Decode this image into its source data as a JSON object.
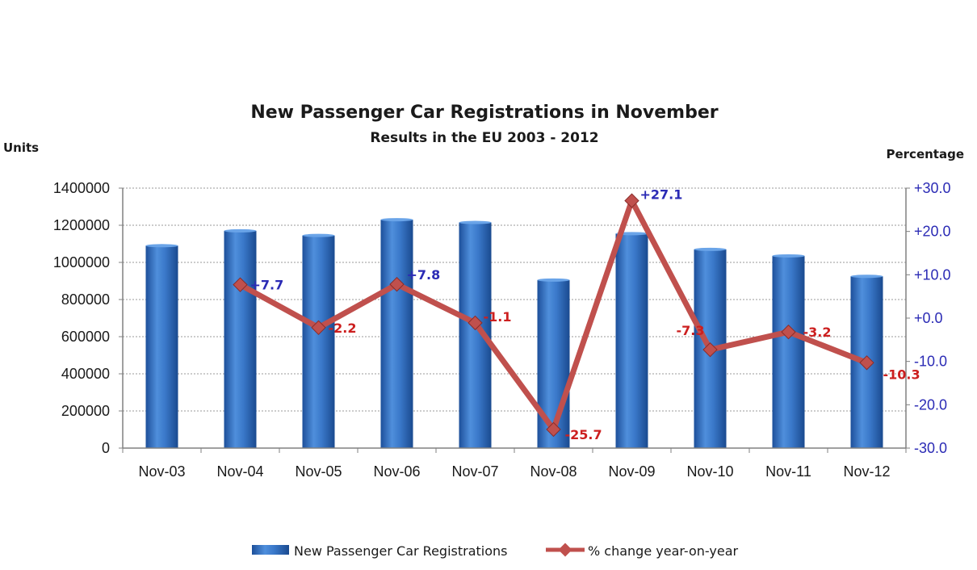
{
  "chart_data": {
    "type": "bar",
    "title": "New Passenger Car Registrations in November",
    "subtitle": "Results in the EU 2003 - 2012",
    "ylabel": "Units",
    "y2label": "Percentage",
    "categories": [
      "Nov-03",
      "Nov-04",
      "Nov-05",
      "Nov-06",
      "Nov-07",
      "Nov-08",
      "Nov-09",
      "Nov-10",
      "Nov-11",
      "Nov-12"
    ],
    "ylim": [
      0,
      1400000
    ],
    "y2lim": [
      -30,
      30
    ],
    "yticks": [
      "0",
      "200000",
      "400000",
      "600000",
      "800000",
      "1000000",
      "1200000",
      "1400000"
    ],
    "y2ticks": [
      "-30.0",
      "-20.0",
      "-10.0",
      "+0.0",
      "+10.0",
      "+20.0",
      "+30.0"
    ],
    "series": [
      {
        "name": "New Passenger Car Registrations",
        "type": "bar",
        "axis": "left",
        "color": "#2e6bbf",
        "values": [
          1090000,
          1170000,
          1145000,
          1230000,
          1215000,
          905000,
          1155000,
          1070000,
          1035000,
          925000
        ]
      },
      {
        "name": "% change year-on-year",
        "type": "line",
        "axis": "right",
        "color": "#c0504d",
        "values": [
          null,
          7.7,
          -2.2,
          7.8,
          -1.1,
          -25.7,
          27.1,
          -7.3,
          -3.2,
          -10.3
        ],
        "labels": [
          "",
          "+7.7",
          "-2.2",
          "+7.8",
          "-1.1",
          "-25.7",
          "+27.1",
          "-7.3",
          "-3.2",
          "-10.3"
        ]
      }
    ],
    "grid": true,
    "legend_position": "bottom",
    "label_colors": {
      "positive": "#2b2bb5",
      "negative": "#cc1f1f"
    }
  }
}
